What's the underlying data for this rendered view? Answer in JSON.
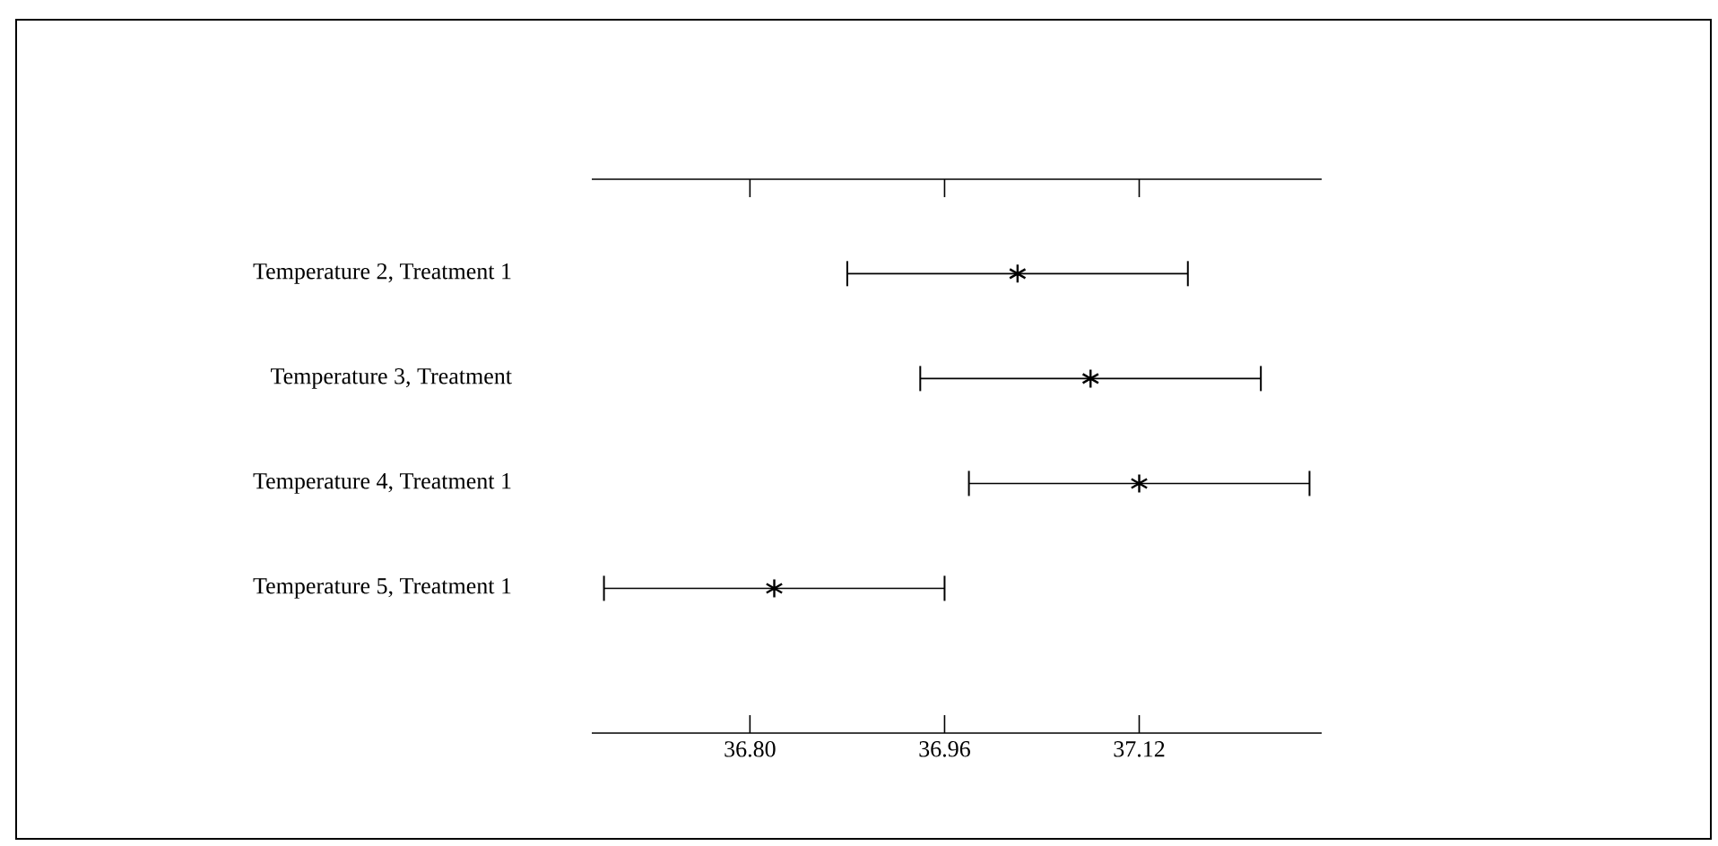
{
  "chart_data": {
    "type": "scatter",
    "orientation": "horizontal",
    "categories": [
      "Temperature 2, Treatment 1",
      "Temperature 3, Treatment",
      "Temperature 4, Treatment 1",
      "Temperature 5, Treatment 1"
    ],
    "values": [
      37.02,
      37.08,
      37.12,
      36.82
    ],
    "errors": [
      0.14,
      0.14,
      0.14,
      0.14
    ],
    "xlim": [
      36.67,
      37.27
    ],
    "xticks": [
      {
        "value": 36.8,
        "label": "36.80"
      },
      36.96,
      37.12
    ],
    "marker": "cross",
    "color": "#000000"
  }
}
